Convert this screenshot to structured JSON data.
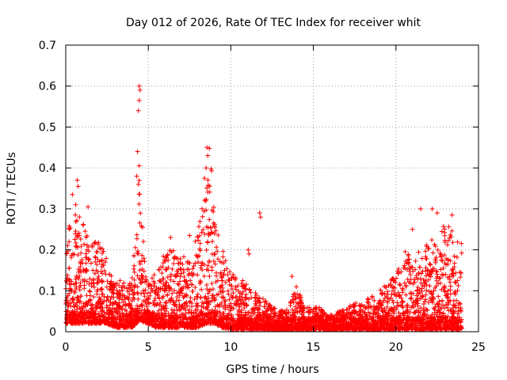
{
  "chart_data": {
    "type": "scatter",
    "title": "Day 012 of 2026, Rate Of TEC Index for receiver whit",
    "xlabel": "GPS time / hours",
    "ylabel": "ROTI / TECUs",
    "xlim": [
      0,
      25
    ],
    "ylim": [
      0,
      0.7
    ],
    "xticks": [
      0,
      5,
      10,
      15,
      20,
      25
    ],
    "yticks": [
      0,
      0.1,
      0.2,
      0.3,
      0.4,
      0.5,
      0.6,
      0.7
    ],
    "xtick_labels": [
      "0",
      "5",
      "10",
      "15",
      "20",
      "25"
    ],
    "ytick_labels": [
      "0",
      "0.1",
      "0.2",
      "0.3",
      "0.4",
      "0.5",
      "0.6",
      "0.7"
    ],
    "grid": true,
    "marker": "+",
    "color": "#ff0000",
    "envelope": {
      "x": [
        0,
        0.5,
        1.0,
        1.5,
        2.0,
        2.5,
        3.0,
        3.5,
        4.0,
        4.3,
        4.5,
        4.8,
        5.0,
        5.5,
        6.0,
        6.5,
        7.0,
        7.5,
        8.0,
        8.5,
        8.8,
        9.0,
        9.5,
        10.0,
        10.5,
        11.0,
        11.5,
        12.0,
        12.5,
        13.0,
        13.5,
        14.0,
        14.5,
        15.0,
        15.5,
        16.0,
        16.5,
        17.0,
        17.5,
        18.0,
        18.5,
        19.0,
        19.5,
        20.0,
        20.5,
        21.0,
        21.5,
        22.0,
        22.5,
        23.0,
        23.5,
        24.0
      ],
      "upper": [
        0.28,
        0.3,
        0.27,
        0.22,
        0.24,
        0.18,
        0.12,
        0.13,
        0.12,
        0.3,
        0.4,
        0.15,
        0.12,
        0.15,
        0.2,
        0.2,
        0.18,
        0.19,
        0.25,
        0.35,
        0.45,
        0.3,
        0.2,
        0.15,
        0.13,
        0.12,
        0.1,
        0.08,
        0.06,
        0.05,
        0.06,
        0.12,
        0.06,
        0.06,
        0.06,
        0.04,
        0.05,
        0.06,
        0.07,
        0.07,
        0.09,
        0.1,
        0.12,
        0.14,
        0.2,
        0.18,
        0.2,
        0.22,
        0.25,
        0.27,
        0.25,
        0.22
      ],
      "lower": [
        0.02,
        0.02,
        0.02,
        0.02,
        0.02,
        0.02,
        0.01,
        0.01,
        0.01,
        0.02,
        0.03,
        0.02,
        0.02,
        0.01,
        0.01,
        0.01,
        0.01,
        0.01,
        0.01,
        0.02,
        0.02,
        0.02,
        0.01,
        0.005,
        0.005,
        0.005,
        0.005,
        0.005,
        0.005,
        0.005,
        0.005,
        0.005,
        0.005,
        0.005,
        0.005,
        0.005,
        0.005,
        0.005,
        0.005,
        0.005,
        0.005,
        0.005,
        0.005,
        0.005,
        0.005,
        0.005,
        0.005,
        0.005,
        0.005,
        0.005,
        0.005,
        0.005
      ]
    },
    "outliers": [
      {
        "x": 4.45,
        "y": 0.6
      },
      {
        "x": 4.5,
        "y": 0.59
      },
      {
        "x": 4.45,
        "y": 0.565
      },
      {
        "x": 4.4,
        "y": 0.54
      },
      {
        "x": 4.35,
        "y": 0.44
      },
      {
        "x": 4.45,
        "y": 0.405
      },
      {
        "x": 4.3,
        "y": 0.38
      },
      {
        "x": 4.4,
        "y": 0.36
      },
      {
        "x": 8.55,
        "y": 0.45
      },
      {
        "x": 8.7,
        "y": 0.448
      },
      {
        "x": 8.6,
        "y": 0.43
      },
      {
        "x": 8.5,
        "y": 0.4
      },
      {
        "x": 8.4,
        "y": 0.375
      },
      {
        "x": 0.4,
        "y": 0.335
      },
      {
        "x": 0.7,
        "y": 0.37
      },
      {
        "x": 0.75,
        "y": 0.355
      },
      {
        "x": 0.6,
        "y": 0.31
      },
      {
        "x": 1.35,
        "y": 0.305
      },
      {
        "x": 11.75,
        "y": 0.29
      },
      {
        "x": 11.8,
        "y": 0.28
      },
      {
        "x": 21.0,
        "y": 0.25
      },
      {
        "x": 21.5,
        "y": 0.3
      },
      {
        "x": 22.2,
        "y": 0.3
      },
      {
        "x": 22.5,
        "y": 0.29
      },
      {
        "x": 23.4,
        "y": 0.285
      },
      {
        "x": 13.7,
        "y": 0.135
      },
      {
        "x": 11.05,
        "y": 0.2
      },
      {
        "x": 11.1,
        "y": 0.19
      },
      {
        "x": 6.35,
        "y": 0.23
      },
      {
        "x": 7.5,
        "y": 0.235
      }
    ]
  }
}
